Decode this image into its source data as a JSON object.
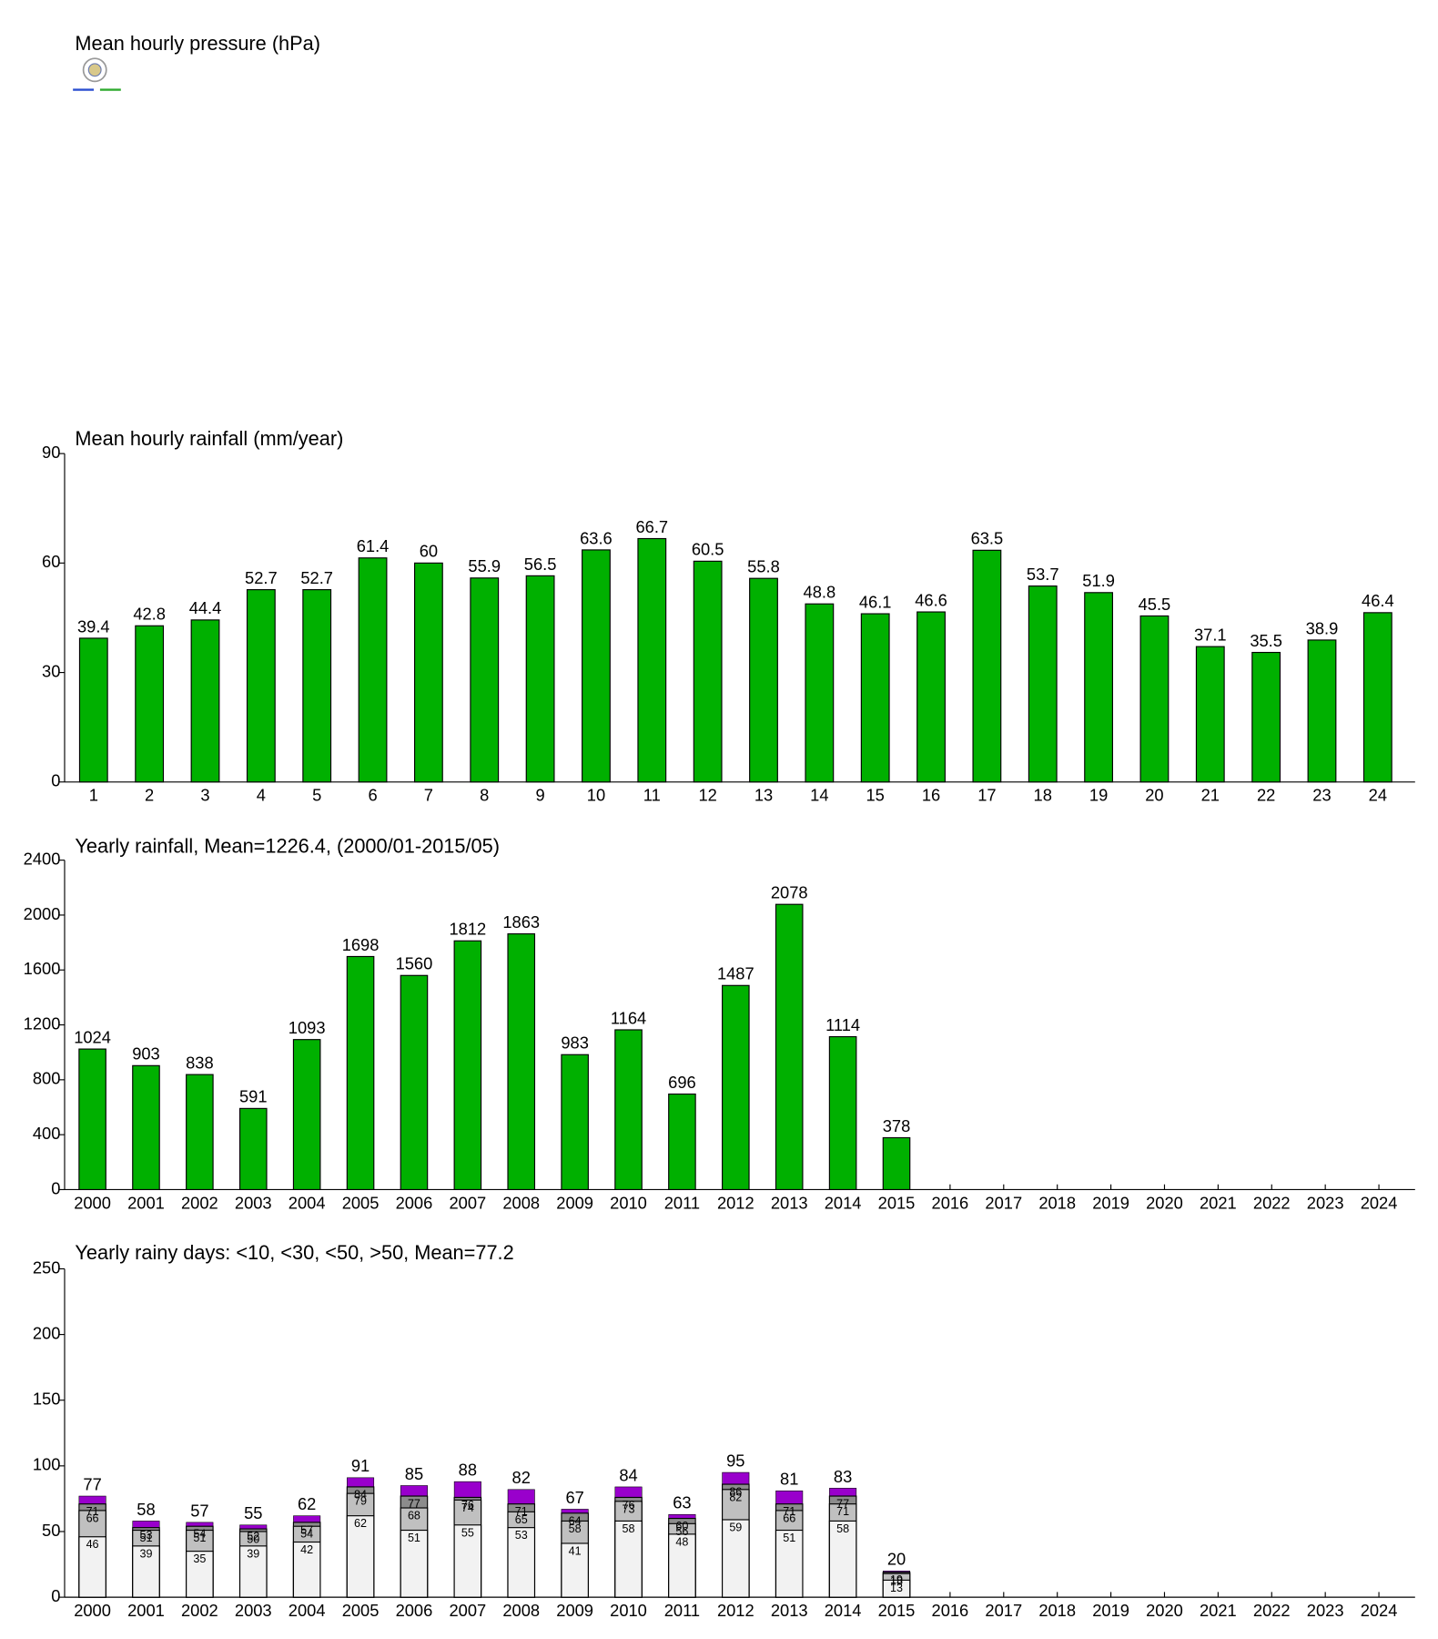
{
  "chart_data": [
    {
      "type": "bar",
      "title": "Mean hourly pressure (hPa)"
    },
    {
      "type": "bar",
      "title": "Mean hourly rainfall (mm/year)",
      "categories": [
        "1",
        "2",
        "3",
        "4",
        "5",
        "6",
        "7",
        "8",
        "9",
        "10",
        "11",
        "12",
        "13",
        "14",
        "15",
        "16",
        "17",
        "18",
        "19",
        "20",
        "21",
        "22",
        "23",
        "24"
      ],
      "values": [
        39.4,
        42.8,
        44.4,
        52.7,
        52.7,
        61.4,
        60,
        55.9,
        56.5,
        63.6,
        66.7,
        60.5,
        55.8,
        48.8,
        46.1,
        46.6,
        63.5,
        53.7,
        51.9,
        45.5,
        37.1,
        35.5,
        38.9,
        46.4
      ],
      "color": "#00b000",
      "ylim": [
        0,
        90
      ],
      "yticks": [
        0,
        30,
        60,
        90
      ]
    },
    {
      "type": "bar",
      "title": "Yearly rainfall, Mean=1226.4, (2000/01-2015/05)",
      "categories": [
        "2000",
        "2001",
        "2002",
        "2003",
        "2004",
        "2005",
        "2006",
        "2007",
        "2008",
        "2009",
        "2010",
        "2011",
        "2012",
        "2013",
        "2014",
        "2015",
        "2016",
        "2017",
        "2018",
        "2019",
        "2020",
        "2021",
        "2022",
        "2023",
        "2024"
      ],
      "values": [
        1024,
        903,
        838,
        591,
        1093,
        1698,
        1560,
        1812,
        1863,
        983,
        1164,
        696,
        1487,
        2078,
        1114,
        378,
        null,
        null,
        null,
        null,
        null,
        null,
        null,
        null,
        null
      ],
      "color": "#00b000",
      "ylim": [
        0,
        2400
      ],
      "yticks": [
        0,
        400,
        800,
        1200,
        1600,
        2000,
        2400
      ]
    },
    {
      "type": "overlay",
      "title": "Yearly rainy days: <10, <30, <50, >50, Mean=77.2",
      "categories": [
        "2000",
        "2001",
        "2002",
        "2003",
        "2004",
        "2005",
        "2006",
        "2007",
        "2008",
        "2009",
        "2010",
        "2011",
        "2012",
        "2013",
        "2014",
        "2015",
        "2016",
        "2017",
        "2018",
        "2019",
        "2020",
        "2021",
        "2022",
        "2023",
        "2024"
      ],
      "series": [
        {
          "color": "#f2f2f2",
          "values": [
            46,
            39,
            35,
            39,
            42,
            62,
            51,
            55,
            53,
            41,
            58,
            48,
            59,
            51,
            58,
            13,
            null,
            null,
            null,
            null,
            null,
            null,
            null,
            null,
            null
          ]
        },
        {
          "color": "#c0c0c0",
          "values": [
            66,
            51,
            51,
            50,
            54,
            79,
            68,
            74,
            65,
            58,
            73,
            56,
            82,
            66,
            71,
            18,
            null,
            null,
            null,
            null,
            null,
            null,
            null,
            null,
            null
          ]
        },
        {
          "color": "#8c8c8c",
          "values": [
            71,
            53,
            54,
            52,
            57,
            84,
            77,
            76,
            71,
            64,
            76,
            60,
            86,
            71,
            77,
            19,
            null,
            null,
            null,
            null,
            null,
            null,
            null,
            null,
            null
          ]
        },
        {
          "color": "#9900cc",
          "values": [
            77,
            58,
            57,
            55,
            62,
            91,
            85,
            88,
            82,
            67,
            84,
            63,
            95,
            81,
            83,
            20,
            null,
            null,
            null,
            null,
            null,
            null,
            null,
            null,
            null
          ]
        }
      ],
      "ylim": [
        0,
        250
      ],
      "yticks": [
        0,
        50,
        100,
        150,
        200,
        250
      ]
    }
  ]
}
